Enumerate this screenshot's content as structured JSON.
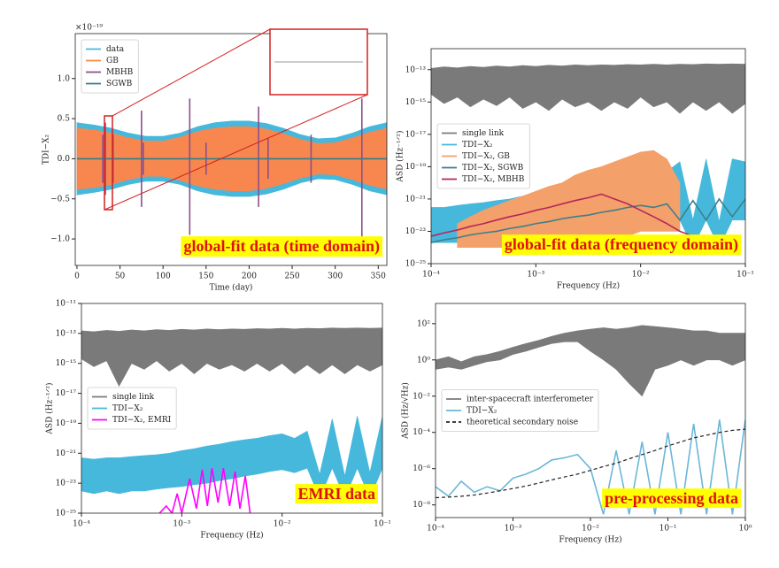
{
  "chart_data": [
    {
      "type": "line",
      "title": "global-fit data (time domain)",
      "x_label": "Time (day)",
      "y_label": "TDI−X₂",
      "y_offset_label": "×10⁻¹⁹",
      "xlim": [
        -2,
        360
      ],
      "xticks": [
        0,
        50,
        100,
        150,
        200,
        250,
        300,
        350
      ],
      "ylim": [
        -1.33,
        1.56
      ],
      "yticks": [
        {
          "value": -1,
          "label": "−1.0"
        },
        {
          "value": -0.5,
          "label": "−0.5"
        },
        {
          "value": 0,
          "label": "0.0"
        },
        0.5,
        {
          "value": 1,
          "label": "1.0"
        }
      ],
      "legend_loc": "upper left",
      "x": [
        0,
        20,
        40,
        60,
        80,
        100,
        120,
        140,
        160,
        180,
        200,
        220,
        240,
        260,
        280,
        300,
        320,
        340,
        360
      ],
      "series": [
        {
          "name": "data",
          "color": "#46b8dc",
          "upper": [
            0.45,
            0.42,
            0.38,
            0.32,
            0.28,
            0.28,
            0.32,
            0.4,
            0.45,
            0.47,
            0.47,
            0.44,
            0.38,
            0.3,
            0.25,
            0.26,
            0.32,
            0.4,
            0.45
          ],
          "lower": [
            -0.45,
            -0.42,
            -0.38,
            -0.32,
            -0.28,
            -0.28,
            -0.32,
            -0.4,
            -0.45,
            -0.47,
            -0.47,
            -0.44,
            -0.38,
            -0.3,
            -0.25,
            -0.26,
            -0.32,
            -0.4,
            -0.45
          ]
        },
        {
          "name": "GB",
          "color": "#f7874f",
          "upper": [
            0.38,
            0.36,
            0.32,
            0.26,
            0.22,
            0.22,
            0.27,
            0.34,
            0.38,
            0.4,
            0.4,
            0.37,
            0.31,
            0.24,
            0.19,
            0.2,
            0.26,
            0.33,
            0.38
          ],
          "lower": [
            -0.38,
            -0.36,
            -0.32,
            -0.26,
            -0.22,
            -0.22,
            -0.27,
            -0.34,
            -0.38,
            -0.4,
            -0.4,
            -0.37,
            -0.31,
            -0.24,
            -0.19,
            -0.2,
            -0.26,
            -0.33,
            -0.38
          ]
        },
        {
          "name": "MBHB",
          "color": "#8e4f8a",
          "x": [
            30,
            30,
            31,
            33,
            33,
            34,
            42,
            42,
            43,
            75,
            75,
            76,
            77,
            77,
            78,
            131,
            131,
            132,
            150,
            150,
            151,
            211,
            211,
            212,
            222,
            222,
            223,
            272,
            272,
            273,
            331,
            331,
            332
          ],
          "values": [
            0.3,
            -0.3,
            null,
            0.45,
            -0.45,
            null,
            0.3,
            -0.3,
            null,
            0.6,
            -0.6,
            null,
            0.2,
            -0.2,
            null,
            0.75,
            -0.95,
            null,
            0.2,
            -0.2,
            null,
            0.65,
            -0.6,
            null,
            0.25,
            -0.25,
            null,
            0.3,
            -0.3,
            null,
            0.75,
            -1.05,
            null
          ]
        },
        {
          "name": "SGWB",
          "color": "#2f7f8c",
          "x": [
            0,
            360
          ],
          "values": [
            0,
            0
          ]
        }
      ]
    },
    {
      "type": "line",
      "title": "global-fit data (frequency domain)",
      "x_label": "Frequency (Hz)",
      "y_label": "ASD (Hz⁻¹ᐟ²)",
      "xscale": "log",
      "yscale": "log",
      "xlim": [
        0.0001,
        0.1
      ],
      "xticks": [
        {
          "value": 0.0001,
          "label": "10⁻⁴"
        },
        {
          "value": 0.001,
          "label": "10⁻³"
        },
        {
          "value": 0.01,
          "label": "10⁻²"
        },
        {
          "value": 0.1,
          "label": "10⁻¹"
        }
      ],
      "ylim": [
        1e-25,
        2e-12
      ],
      "yticks": [
        {
          "value": 1e-25,
          "label": "10⁻²⁵"
        },
        {
          "value": 1e-23,
          "label": "10⁻²³"
        },
        {
          "value": 1e-21,
          "label": "10⁻²¹"
        },
        {
          "value": 1e-19,
          "label": "10⁻¹⁹"
        },
        {
          "value": 1e-17,
          "label": "10⁻¹⁷"
        },
        {
          "value": 1e-15,
          "label": "10⁻¹⁵"
        },
        {
          "value": 1e-13,
          "label": "10⁻¹³"
        }
      ],
      "legend_loc": "center left",
      "x": [
        0.0001,
        0.000133,
        0.000178,
        0.000237,
        0.000316,
        0.000422,
        0.000562,
        0.00075,
        0.001,
        0.00133,
        0.00178,
        0.00237,
        0.00316,
        0.00422,
        0.00562,
        0.0075,
        0.01,
        0.0133,
        0.0178,
        0.0237,
        0.0316,
        0.0422,
        0.0562,
        0.075,
        0.1
      ],
      "series": [
        {
          "name": "single link",
          "color": "#7a7a7a",
          "upper": [
            1.2e-13,
            1.5e-13,
            1.3e-13,
            1.6e-13,
            1.4e-13,
            1.7e-13,
            1.5e-13,
            1.8e-13,
            1.6e-13,
            1.9e-13,
            1.7e-13,
            2e-13,
            1.8e-13,
            2e-13,
            1.9e-13,
            2.1e-13,
            2e-13,
            2.2e-13,
            2e-13,
            2.2e-13,
            2.1e-13,
            2.3e-13,
            2.2e-13,
            2.3e-13,
            2.2e-13
          ],
          "lower": [
            3e-15,
            8e-16,
            2e-15,
            5e-16,
            1.5e-15,
            6e-16,
            2e-15,
            4e-16,
            1e-15,
            3e-16,
            1.5e-15,
            5e-16,
            1e-15,
            3e-16,
            1e-15,
            4e-16,
            2e-15,
            5e-16,
            1e-15,
            2e-16,
            1e-15,
            3e-16,
            1e-15,
            2e-16,
            8e-16
          ]
        },
        {
          "name": "TDI−X₂",
          "color": "#46b8dc",
          "upper": [
            3e-22,
            3e-22,
            4e-22,
            5e-22,
            6e-22,
            8e-22,
            1e-21,
            1.5e-21,
            2e-21,
            3e-21,
            4e-21,
            6e-21,
            8e-21,
            1e-20,
            1.5e-20,
            2e-20,
            3e-20,
            1e-19,
            5e-20,
            2e-19,
            5e-23,
            3e-19,
            4e-23,
            3e-19,
            2e-19
          ],
          "lower": [
            2e-24,
            2e-24,
            2e-24,
            3e-24,
            3e-24,
            4e-24,
            5e-24,
            6e-24,
            8e-24,
            1e-23,
            1e-23,
            1.5e-23,
            2e-23,
            2e-23,
            3e-23,
            3e-23,
            4e-23,
            5e-23,
            5e-23,
            5e-23,
            1e-24,
            5e-23,
            1e-24,
            5e-23,
            5e-23
          ]
        },
        {
          "name": "TDI−X₂, GB",
          "color": "#f4a06a",
          "upper": [
            null,
            null,
            3e-23,
            8e-23,
            2e-22,
            4e-22,
            8e-22,
            1.5e-21,
            3e-21,
            6e-21,
            1e-20,
            3e-20,
            6e-20,
            1e-19,
            2e-19,
            4e-19,
            8e-19,
            1e-18,
            3e-19,
            1e-20,
            null,
            null,
            null,
            null,
            null
          ],
          "lower": [
            null,
            null,
            1e-24,
            1e-24,
            1e-24,
            1e-24,
            1e-24,
            1e-24,
            1e-24,
            1e-24,
            2e-24,
            2e-24,
            3e-24,
            3e-24,
            5e-24,
            5e-24,
            1e-23,
            1e-23,
            1e-23,
            1e-23,
            null,
            null,
            null,
            null,
            null
          ]
        },
        {
          "name": "TDI−X₂, SGWB",
          "color": "#3d7f8a",
          "values": [
            2e-24,
            3e-24,
            4e-24,
            6e-24,
            8e-24,
            1e-23,
            1.5e-23,
            2e-23,
            3e-23,
            4e-23,
            6e-23,
            8e-23,
            1e-22,
            1.5e-22,
            2e-22,
            3e-22,
            4e-22,
            3e-22,
            5e-22,
            5e-23,
            8e-22,
            5e-23,
            1e-21,
            8e-23,
            1e-21
          ]
        },
        {
          "name": "TDI−X₂, MBHB",
          "color": "#b5265a",
          "values": [
            5e-24,
            8e-24,
            1.2e-23,
            2e-23,
            3e-23,
            5e-23,
            8e-23,
            1.2e-22,
            2e-22,
            3e-22,
            5e-22,
            8e-22,
            1.2e-21,
            2e-21,
            1e-21,
            5e-22,
            2e-22,
            8e-23,
            3e-23,
            1e-23,
            5e-24,
            2e-24,
            1e-24,
            null,
            null
          ]
        }
      ]
    },
    {
      "type": "line",
      "title": "EMRI data",
      "x_label": "Frequency (Hz)",
      "y_label": "ASD (Hz⁻¹ᐟ²)",
      "xscale": "log",
      "yscale": "log",
      "xlim": [
        0.0001,
        0.1
      ],
      "xticks": [
        {
          "value": 0.0001,
          "label": "10⁻⁴"
        },
        {
          "value": 0.001,
          "label": "10⁻³"
        },
        {
          "value": 0.01,
          "label": "10⁻²"
        },
        {
          "value": 0.1,
          "label": "10⁻¹"
        }
      ],
      "ylim": [
        1e-25,
        1e-11
      ],
      "yticks": [
        {
          "value": 1e-25,
          "label": "10⁻²⁵"
        },
        {
          "value": 1e-23,
          "label": "10⁻²³"
        },
        {
          "value": 1e-21,
          "label": "10⁻²¹"
        },
        {
          "value": 1e-19,
          "label": "10⁻¹⁹"
        },
        {
          "value": 1e-17,
          "label": "10⁻¹⁷"
        },
        {
          "value": 1e-15,
          "label": "10⁻¹⁵"
        },
        {
          "value": 1e-13,
          "label": "10⁻¹³"
        },
        {
          "value": 1e-11,
          "label": "10⁻¹¹"
        }
      ],
      "legend_loc": "center left",
      "x": [
        0.0001,
        0.000133,
        0.000178,
        0.000237,
        0.000316,
        0.000422,
        0.000562,
        0.00075,
        0.001,
        0.00133,
        0.00178,
        0.00237,
        0.00316,
        0.00422,
        0.00562,
        0.0075,
        0.01,
        0.0133,
        0.0178,
        0.0237,
        0.0316,
        0.0422,
        0.0562,
        0.075,
        0.1
      ],
      "series": [
        {
          "name": "single link",
          "color": "#7a7a7a",
          "upper": [
            1.5e-13,
            1.3e-13,
            1.6e-13,
            1.4e-13,
            1.7e-13,
            1.5e-13,
            1.8e-13,
            1.6e-13,
            1.9e-13,
            1.7e-13,
            2e-13,
            1.8e-13,
            2e-13,
            1.9e-13,
            2.1e-13,
            2e-13,
            2.2e-13,
            2e-13,
            2.2e-13,
            2.1e-13,
            2.3e-13,
            2.2e-13,
            2.3e-13,
            2.2e-13,
            2.3e-13
          ],
          "lower": [
            2e-15,
            6e-16,
            1.5e-15,
            3e-17,
            1e-15,
            4e-16,
            1.5e-15,
            3e-16,
            1e-15,
            2e-16,
            1e-15,
            4e-16,
            8e-16,
            3e-16,
            1e-15,
            3e-16,
            1e-15,
            2e-16,
            8e-16,
            2e-16,
            8e-16,
            2e-16,
            8e-16,
            3e-16,
            8e-16
          ]
        },
        {
          "name": "TDI−X₂",
          "color": "#46b8dc",
          "upper": [
            5e-22,
            4e-22,
            5e-22,
            5e-22,
            6e-22,
            7e-22,
            8e-22,
            1e-21,
            1.5e-21,
            2e-21,
            3e-21,
            4e-21,
            6e-21,
            8e-21,
            1e-20,
            1.5e-20,
            2e-20,
            1e-20,
            3e-20,
            4e-23,
            2e-19,
            3e-23,
            3e-19,
            5e-23,
            3e-19
          ],
          "lower": [
            3e-24,
            2e-24,
            3e-24,
            2e-24,
            3e-24,
            3e-24,
            4e-24,
            5e-24,
            6e-24,
            8e-24,
            1e-23,
            1.5e-23,
            2e-23,
            3e-23,
            4e-23,
            6e-23,
            8e-23,
            5e-23,
            1e-22,
            1e-24,
            1e-22,
            1e-24,
            1e-22,
            1e-24,
            1e-22
          ]
        },
        {
          "name": "TDI−X₂, EMRI",
          "color": "#ff00ff",
          "x": [
            0.0006,
            0.0007,
            0.0008,
            0.0009,
            0.001,
            0.0012,
            0.0014,
            0.0016,
            0.0018,
            0.002,
            0.0023,
            0.0026,
            0.003,
            0.0034,
            0.0038,
            0.0043,
            0.0048
          ],
          "values": [
            1e-25,
            3e-25,
            1e-25,
            2e-24,
            1e-25,
            2e-23,
            2e-25,
            8e-23,
            3e-25,
            1e-22,
            5e-25,
            1e-22,
            3e-25,
            6e-23,
            2e-25,
            3e-23,
            1e-25
          ]
        }
      ]
    },
    {
      "type": "line",
      "title": "pre-processing data",
      "x_label": "Frequency (Hz)",
      "y_label": "ASD (Hz/√Hz)",
      "xscale": "log",
      "yscale": "log",
      "xlim": [
        0.0001,
        1
      ],
      "xticks": [
        {
          "value": 0.0001,
          "label": "10⁻⁴"
        },
        {
          "value": 0.001,
          "label": "10⁻³"
        },
        {
          "value": 0.01,
          "label": "10⁻²"
        },
        {
          "value": 0.1,
          "label": "10⁻¹"
        },
        {
          "value": 1,
          "label": "10⁰"
        }
      ],
      "ylim": [
        2e-09,
        1300
      ],
      "yticks": [
        {
          "value": 1e-08,
          "label": "10⁻⁸"
        },
        {
          "value": 1e-06,
          "label": "10⁻⁶"
        },
        {
          "value": 0.0001,
          "label": "10⁻⁴"
        },
        {
          "value": 0.01,
          "label": "10⁻²"
        },
        {
          "value": 1,
          "label": "10⁰"
        },
        {
          "value": 100,
          "label": "10²"
        }
      ],
      "legend_loc": "center left",
      "x": [
        0.0001,
        0.000147,
        0.000215,
        0.000316,
        0.000464,
        0.000681,
        0.001,
        0.00147,
        0.00215,
        0.00316,
        0.00464,
        0.00681,
        0.01,
        0.0147,
        0.0215,
        0.0316,
        0.0464,
        0.0681,
        0.1,
        0.147,
        0.215,
        0.316,
        0.464,
        0.681,
        1
      ],
      "series": [
        {
          "name": "inter-spacecraft interferometer",
          "color": "#7a7a7a",
          "upper": [
            1,
            1.5,
            0.8,
            1.5,
            2,
            3,
            5,
            8,
            12,
            20,
            30,
            40,
            50,
            60,
            50,
            60,
            80,
            70,
            60,
            50,
            40,
            40,
            30,
            30,
            30
          ],
          "lower": [
            0.3,
            0.4,
            0.3,
            0.5,
            0.8,
            1,
            2,
            3,
            5,
            8,
            10,
            10,
            3,
            1,
            0.3,
            0.05,
            0.01,
            0.3,
            0.5,
            1,
            0.5,
            1,
            1,
            0.5,
            1
          ]
        },
        {
          "name": "TDI−X₂",
          "color": "#6ab7d8",
          "values": [
            1e-07,
            3e-08,
            2e-07,
            5e-08,
            1e-07,
            6e-08,
            3e-07,
            5e-07,
            1e-06,
            3e-06,
            4e-06,
            6e-06,
            1e-06,
            3e-09,
            1e-05,
            3e-09,
            3e-05,
            3e-09,
            0.0001,
            3e-09,
            0.0003,
            3e-09,
            0.0005,
            3e-09,
            0.0005
          ]
        },
        {
          "name": "theoretical secondary noise",
          "color": "#222222",
          "dash": true,
          "values": [
            2.5e-08,
            2.7e-08,
            3e-08,
            3.5e-08,
            4.5e-08,
            6e-08,
            8e-08,
            1.1e-07,
            1.6e-07,
            2.4e-07,
            3.5e-07,
            5e-07,
            8e-07,
            1.3e-06,
            2e-06,
            3.5e-06,
            6e-06,
            1e-05,
            1.8e-05,
            3e-05,
            5e-05,
            7e-05,
            0.0001,
            0.00013,
            0.00015
          ]
        }
      ]
    }
  ]
}
